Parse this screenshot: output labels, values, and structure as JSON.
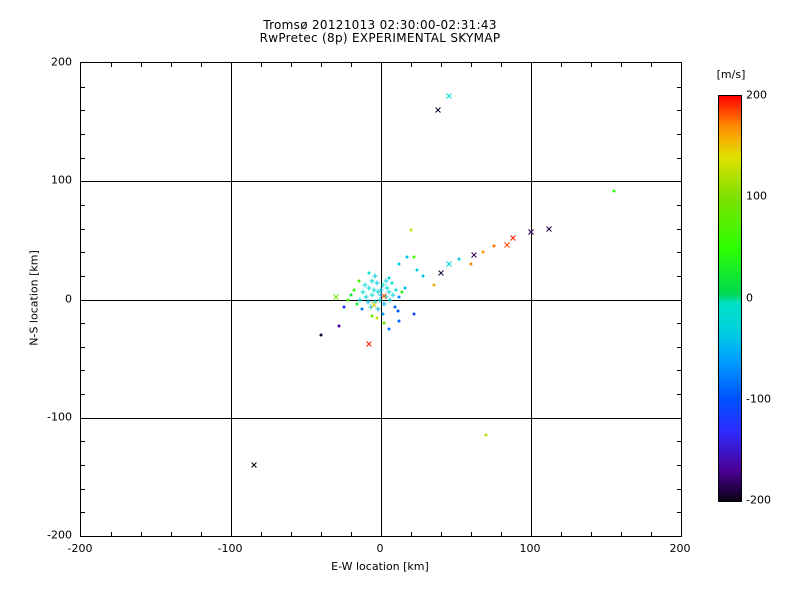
{
  "chart_data": {
    "type": "scatter",
    "title": "Tromsø 20121013 02:30:00-02:31:43",
    "subtitle": "RwPretec (8p) EXPERIMENTAL SKYMAP",
    "xlabel": "E-W location [km]",
    "ylabel": "N-S location [km]",
    "xlim": [
      -200,
      200
    ],
    "ylim": [
      -200,
      200
    ],
    "xticks": [
      -200,
      -100,
      0,
      100,
      200
    ],
    "yticks": [
      -200,
      -100,
      0,
      100,
      200
    ],
    "minor_tick_step": 20,
    "gridlines": [
      -100,
      0,
      100
    ],
    "grid": "on",
    "colorbar": {
      "label": "[m/s]",
      "min": -200,
      "max": 200,
      "ticks": [
        200,
        100,
        0,
        -100,
        -200
      ],
      "stops": [
        [
          -200,
          "#0a0014"
        ],
        [
          -170,
          "#4b0096"
        ],
        [
          -130,
          "#2d2dff"
        ],
        [
          -100,
          "#0050ff"
        ],
        [
          -60,
          "#00a0ff"
        ],
        [
          -30,
          "#00d2dc"
        ],
        [
          -5,
          "#00e1c8"
        ],
        [
          5,
          "#00d750"
        ],
        [
          50,
          "#2dff00"
        ],
        [
          100,
          "#7de000"
        ],
        [
          140,
          "#e1e100"
        ],
        [
          170,
          "#ff8c00"
        ],
        [
          200,
          "#ff0000"
        ]
      ]
    },
    "points": [
      {
        "x": -85,
        "y": -140,
        "v": -200,
        "m": "x"
      },
      {
        "x": 38,
        "y": 160,
        "v": -195,
        "m": "x"
      },
      {
        "x": 45,
        "y": 172,
        "v": -15,
        "m": "x"
      },
      {
        "x": 155,
        "y": 92,
        "v": 45,
        "m": "."
      },
      {
        "x": 70,
        "y": -115,
        "v": 125,
        "m": "."
      },
      {
        "x": -8,
        "y": -38,
        "v": 195,
        "m": "x"
      },
      {
        "x": -40,
        "y": -30,
        "v": -195,
        "m": "."
      },
      {
        "x": -28,
        "y": -22,
        "v": -170,
        "m": "."
      },
      {
        "x": -30,
        "y": 2,
        "v": 95,
        "m": "x"
      },
      {
        "x": 112,
        "y": 60,
        "v": -190,
        "m": "x"
      },
      {
        "x": 100,
        "y": 57,
        "v": -185,
        "m": "x"
      },
      {
        "x": 88,
        "y": 52,
        "v": 195,
        "m": "x"
      },
      {
        "x": 84,
        "y": 46,
        "v": 185,
        "m": "x"
      },
      {
        "x": 75,
        "y": 45,
        "v": 175,
        "m": "."
      },
      {
        "x": 68,
        "y": 40,
        "v": 165,
        "m": "."
      },
      {
        "x": 62,
        "y": 38,
        "v": -185,
        "m": "x"
      },
      {
        "x": 60,
        "y": 30,
        "v": 170,
        "m": "."
      },
      {
        "x": 52,
        "y": 34,
        "v": -30,
        "m": "."
      },
      {
        "x": 45,
        "y": 30,
        "v": -25,
        "m": "x"
      },
      {
        "x": 40,
        "y": 22,
        "v": -190,
        "m": "x"
      },
      {
        "x": 35,
        "y": 12,
        "v": 160,
        "m": "."
      },
      {
        "x": 28,
        "y": 20,
        "v": -40,
        "m": "."
      },
      {
        "x": 24,
        "y": 25,
        "v": -35,
        "m": "."
      },
      {
        "x": 20,
        "y": 59,
        "v": 130,
        "m": "."
      },
      {
        "x": 22,
        "y": 36,
        "v": 60,
        "m": "."
      },
      {
        "x": 17,
        "y": 36,
        "v": -45,
        "m": "."
      },
      {
        "x": 12,
        "y": 30,
        "v": -35,
        "m": "."
      },
      {
        "x": 12,
        "y": -18,
        "v": -90,
        "m": "."
      },
      {
        "x": 22,
        "y": -12,
        "v": -110,
        "m": "."
      },
      {
        "x": 5,
        "y": -25,
        "v": -80,
        "m": "."
      },
      {
        "x": 2,
        "y": -20,
        "v": 85,
        "m": "."
      },
      {
        "x": -2,
        "y": 6,
        "v": -20,
        "m": "+"
      },
      {
        "x": 0,
        "y": 8,
        "v": -35,
        "m": "+"
      },
      {
        "x": -6,
        "y": 4,
        "v": -10,
        "m": "+"
      },
      {
        "x": -8,
        "y": 10,
        "v": -25,
        "m": "+"
      },
      {
        "x": 3,
        "y": 2,
        "v": -45,
        "m": "+"
      },
      {
        "x": -4,
        "y": -2,
        "v": -15,
        "m": "+"
      },
      {
        "x": -10,
        "y": 2,
        "v": -30,
        "m": "+"
      },
      {
        "x": 1,
        "y": 12,
        "v": -20,
        "m": "+"
      },
      {
        "x": -3,
        "y": 14,
        "v": -40,
        "m": "+"
      },
      {
        "x": 5,
        "y": 6,
        "v": -25,
        "m": "+"
      },
      {
        "x": -7,
        "y": -6,
        "v": -35,
        "m": "+"
      },
      {
        "x": -12,
        "y": 6,
        "v": -10,
        "m": "+"
      },
      {
        "x": 2,
        "y": -4,
        "v": -50,
        "m": "+"
      },
      {
        "x": -1,
        "y": 0,
        "v": -30,
        "m": "+"
      },
      {
        "x": -5,
        "y": 8,
        "v": -20,
        "m": "+"
      },
      {
        "x": 4,
        "y": 10,
        "v": -15,
        "m": "+"
      },
      {
        "x": -9,
        "y": -2,
        "v": -40,
        "m": "+"
      },
      {
        "x": 0,
        "y": 4,
        "v": -55,
        "m": "+"
      },
      {
        "x": -14,
        "y": 0,
        "v": -25,
        "m": "+"
      },
      {
        "x": 6,
        "y": 0,
        "v": -35,
        "m": "+"
      },
      {
        "x": -2,
        "y": -8,
        "v": -45,
        "m": "+"
      },
      {
        "x": -6,
        "y": 16,
        "v": -20,
        "m": "+"
      },
      {
        "x": 8,
        "y": 4,
        "v": -30,
        "m": "+"
      },
      {
        "x": -11,
        "y": 12,
        "v": -15,
        "m": "+"
      },
      {
        "x": 3,
        "y": 16,
        "v": -25,
        "m": "+"
      },
      {
        "x": -4,
        "y": 20,
        "v": -35,
        "m": "+"
      },
      {
        "x": 1,
        "y": -12,
        "v": -60,
        "m": "."
      },
      {
        "x": -16,
        "y": -4,
        "v": 30,
        "m": "."
      },
      {
        "x": -18,
        "y": 8,
        "v": 50,
        "m": "."
      },
      {
        "x": 10,
        "y": 8,
        "v": -20,
        "m": "."
      },
      {
        "x": -6,
        "y": -14,
        "v": 90,
        "m": "."
      },
      {
        "x": 12,
        "y": 2,
        "v": -70,
        "m": "."
      },
      {
        "x": -20,
        "y": 4,
        "v": 20,
        "m": "."
      },
      {
        "x": 7,
        "y": 14,
        "v": -10,
        "m": "."
      },
      {
        "x": -13,
        "y": -8,
        "v": -80,
        "m": "."
      },
      {
        "x": 9,
        "y": -6,
        "v": -90,
        "m": "."
      },
      {
        "x": -3,
        "y": -16,
        "v": 130,
        "m": "."
      },
      {
        "x": 14,
        "y": 6,
        "v": 40,
        "m": "."
      },
      {
        "x": -22,
        "y": 0,
        "v": 60,
        "m": "."
      },
      {
        "x": 5,
        "y": 18,
        "v": -30,
        "m": "."
      },
      {
        "x": -8,
        "y": 22,
        "v": -10,
        "m": "."
      },
      {
        "x": 16,
        "y": 10,
        "v": -50,
        "m": "."
      },
      {
        "x": -15,
        "y": 16,
        "v": 70,
        "m": "."
      },
      {
        "x": 11,
        "y": -10,
        "v": -100,
        "m": "."
      },
      {
        "x": -25,
        "y": -6,
        "v": -120,
        "m": "."
      },
      {
        "x": 2,
        "y": 3,
        "v": 180,
        "m": "x"
      },
      {
        "x": -5,
        "y": -5,
        "v": 150,
        "m": "x"
      }
    ]
  }
}
